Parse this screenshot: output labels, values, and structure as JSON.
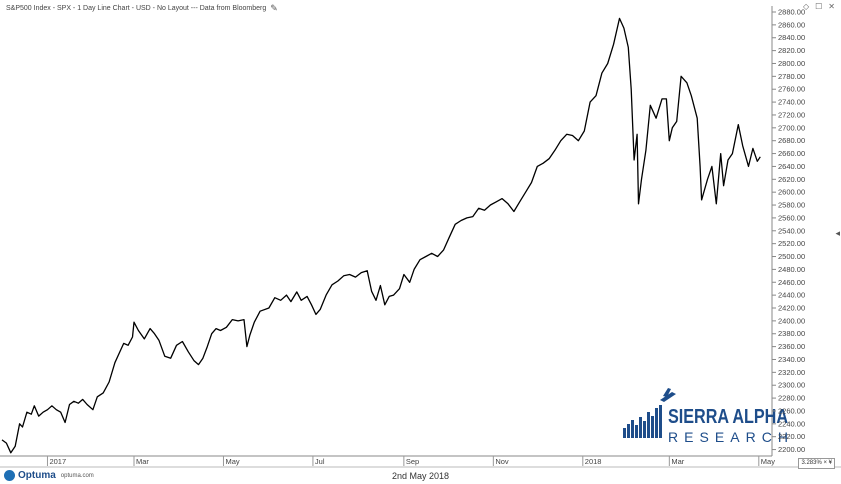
{
  "header": {
    "title": "S&P500 Index - SPX - 1 Day Line Chart - USD - No Layout --- Data from Bloomberg",
    "icon_names": [
      "pencil-icon",
      "diamond-icon",
      "maximize-icon",
      "close-icon",
      "collapse-arrow-icon"
    ]
  },
  "logo": {
    "name_line": "SIERRA ALPHA",
    "sub_line": "RESEARCH",
    "color": "#1e4d8a"
  },
  "footer": {
    "brand": "Optuma",
    "url": "optuma.com",
    "date": "2nd May 2018",
    "scale": "3.283% × ¥"
  },
  "chart_data": {
    "type": "line",
    "title": "S&P500 Index - SPX - 1 Day Line Chart - USD - No Layout --- Data from Bloomberg",
    "xlabel": "",
    "ylabel": "",
    "line_color": "#000000",
    "ylim": [
      2190,
      2880
    ],
    "xlim": [
      "2016-12-01",
      "2018-05-10"
    ],
    "y_ticks": [
      2200,
      2220,
      2240,
      2260,
      2280,
      2300,
      2320,
      2340,
      2360,
      2380,
      2400,
      2420,
      2440,
      2460,
      2480,
      2500,
      2520,
      2540,
      2560,
      2580,
      2600,
      2620,
      2640,
      2660,
      2680,
      2700,
      2720,
      2740,
      2760,
      2780,
      2800,
      2820,
      2840,
      2860,
      2880
    ],
    "x_ticks": [
      {
        "label": "2017",
        "date": "2017-01-01"
      },
      {
        "label": "Mar",
        "date": "2017-03-01"
      },
      {
        "label": "May",
        "date": "2017-05-01"
      },
      {
        "label": "Jul",
        "date": "2017-07-01"
      },
      {
        "label": "Sep",
        "date": "2017-09-01"
      },
      {
        "label": "Nov",
        "date": "2017-11-01"
      },
      {
        "label": "2018",
        "date": "2018-01-01"
      },
      {
        "label": "Mar",
        "date": "2018-03-01"
      },
      {
        "label": "May",
        "date": "2018-05-01"
      }
    ],
    "grid": false,
    "legend": "none",
    "series": [
      {
        "points": [
          [
            "2016-12-01",
            2215
          ],
          [
            "2016-12-04",
            2210
          ],
          [
            "2016-12-07",
            2195
          ],
          [
            "2016-12-10",
            2205
          ],
          [
            "2016-12-13",
            2240
          ],
          [
            "2016-12-15",
            2235
          ],
          [
            "2016-12-18",
            2258
          ],
          [
            "2016-12-21",
            2255
          ],
          [
            "2016-12-23",
            2268
          ],
          [
            "2016-12-26",
            2252
          ],
          [
            "2016-12-29",
            2258
          ],
          [
            "2017-01-01",
            2262
          ],
          [
            "2017-01-04",
            2268
          ],
          [
            "2017-01-07",
            2262
          ],
          [
            "2017-01-10",
            2258
          ],
          [
            "2017-01-13",
            2242
          ],
          [
            "2017-01-16",
            2270
          ],
          [
            "2017-01-19",
            2275
          ],
          [
            "2017-01-22",
            2272
          ],
          [
            "2017-01-25",
            2278
          ],
          [
            "2017-01-28",
            2270
          ],
          [
            "2017-02-01",
            2262
          ],
          [
            "2017-02-04",
            2282
          ],
          [
            "2017-02-08",
            2288
          ],
          [
            "2017-02-12",
            2305
          ],
          [
            "2017-02-16",
            2335
          ],
          [
            "2017-02-19",
            2350
          ],
          [
            "2017-02-22",
            2365
          ],
          [
            "2017-02-25",
            2362
          ],
          [
            "2017-02-28",
            2375
          ],
          [
            "2017-03-01",
            2398
          ],
          [
            "2017-03-04",
            2385
          ],
          [
            "2017-03-08",
            2372
          ],
          [
            "2017-03-12",
            2388
          ],
          [
            "2017-03-15",
            2380
          ],
          [
            "2017-03-18",
            2370
          ],
          [
            "2017-03-22",
            2345
          ],
          [
            "2017-03-26",
            2342
          ],
          [
            "2017-03-30",
            2362
          ],
          [
            "2017-04-03",
            2368
          ],
          [
            "2017-04-07",
            2352
          ],
          [
            "2017-04-11",
            2338
          ],
          [
            "2017-04-14",
            2332
          ],
          [
            "2017-04-17",
            2342
          ],
          [
            "2017-04-20",
            2360
          ],
          [
            "2017-04-23",
            2380
          ],
          [
            "2017-04-26",
            2388
          ],
          [
            "2017-04-29",
            2385
          ],
          [
            "2017-05-03",
            2390
          ],
          [
            "2017-05-07",
            2402
          ],
          [
            "2017-05-11",
            2400
          ],
          [
            "2017-05-15",
            2402
          ],
          [
            "2017-05-17",
            2360
          ],
          [
            "2017-05-19",
            2378
          ],
          [
            "2017-05-22",
            2398
          ],
          [
            "2017-05-26",
            2415
          ],
          [
            "2017-06-01",
            2420
          ],
          [
            "2017-06-05",
            2436
          ],
          [
            "2017-06-09",
            2432
          ],
          [
            "2017-06-13",
            2440
          ],
          [
            "2017-06-16",
            2430
          ],
          [
            "2017-06-20",
            2445
          ],
          [
            "2017-06-23",
            2432
          ],
          [
            "2017-06-27",
            2438
          ],
          [
            "2017-06-30",
            2425
          ],
          [
            "2017-07-03",
            2410
          ],
          [
            "2017-07-06",
            2418
          ],
          [
            "2017-07-10",
            2440
          ],
          [
            "2017-07-14",
            2456
          ],
          [
            "2017-07-18",
            2462
          ],
          [
            "2017-07-22",
            2470
          ],
          [
            "2017-07-26",
            2472
          ],
          [
            "2017-07-30",
            2468
          ],
          [
            "2017-08-03",
            2475
          ],
          [
            "2017-08-07",
            2478
          ],
          [
            "2017-08-10",
            2446
          ],
          [
            "2017-08-13",
            2432
          ],
          [
            "2017-08-16",
            2455
          ],
          [
            "2017-08-19",
            2425
          ],
          [
            "2017-08-22",
            2438
          ],
          [
            "2017-08-25",
            2440
          ],
          [
            "2017-08-29",
            2450
          ],
          [
            "2017-09-01",
            2472
          ],
          [
            "2017-09-05",
            2460
          ],
          [
            "2017-09-08",
            2480
          ],
          [
            "2017-09-12",
            2495
          ],
          [
            "2017-09-16",
            2500
          ],
          [
            "2017-09-20",
            2505
          ],
          [
            "2017-09-24",
            2500
          ],
          [
            "2017-09-28",
            2510
          ],
          [
            "2017-10-02",
            2530
          ],
          [
            "2017-10-06",
            2550
          ],
          [
            "2017-10-10",
            2556
          ],
          [
            "2017-10-14",
            2560
          ],
          [
            "2017-10-18",
            2562
          ],
          [
            "2017-10-22",
            2575
          ],
          [
            "2017-10-26",
            2572
          ],
          [
            "2017-10-30",
            2580
          ],
          [
            "2017-11-03",
            2585
          ],
          [
            "2017-11-07",
            2590
          ],
          [
            "2017-11-11",
            2582
          ],
          [
            "2017-11-15",
            2570
          ],
          [
            "2017-11-19",
            2585
          ],
          [
            "2017-11-23",
            2600
          ],
          [
            "2017-11-27",
            2615
          ],
          [
            "2017-12-01",
            2640
          ],
          [
            "2017-12-05",
            2645
          ],
          [
            "2017-12-09",
            2652
          ],
          [
            "2017-12-13",
            2665
          ],
          [
            "2017-12-17",
            2680
          ],
          [
            "2017-12-21",
            2690
          ],
          [
            "2017-12-25",
            2688
          ],
          [
            "2017-12-29",
            2680
          ],
          [
            "2018-01-02",
            2695
          ],
          [
            "2018-01-06",
            2740
          ],
          [
            "2018-01-10",
            2750
          ],
          [
            "2018-01-14",
            2785
          ],
          [
            "2018-01-18",
            2800
          ],
          [
            "2018-01-22",
            2830
          ],
          [
            "2018-01-26",
            2870
          ],
          [
            "2018-01-29",
            2855
          ],
          [
            "2018-02-01",
            2825
          ],
          [
            "2018-02-03",
            2760
          ],
          [
            "2018-02-05",
            2650
          ],
          [
            "2018-02-07",
            2690
          ],
          [
            "2018-02-08",
            2582
          ],
          [
            "2018-02-10",
            2620
          ],
          [
            "2018-02-13",
            2665
          ],
          [
            "2018-02-16",
            2735
          ],
          [
            "2018-02-20",
            2715
          ],
          [
            "2018-02-24",
            2745
          ],
          [
            "2018-02-27",
            2745
          ],
          [
            "2018-03-01",
            2680
          ],
          [
            "2018-03-03",
            2700
          ],
          [
            "2018-03-06",
            2710
          ],
          [
            "2018-03-09",
            2780
          ],
          [
            "2018-03-13",
            2770
          ],
          [
            "2018-03-16",
            2750
          ],
          [
            "2018-03-20",
            2715
          ],
          [
            "2018-03-22",
            2640
          ],
          [
            "2018-03-23",
            2588
          ],
          [
            "2018-03-27",
            2620
          ],
          [
            "2018-03-30",
            2640
          ],
          [
            "2018-04-02",
            2582
          ],
          [
            "2018-04-05",
            2660
          ],
          [
            "2018-04-07",
            2610
          ],
          [
            "2018-04-10",
            2650
          ],
          [
            "2018-04-13",
            2660
          ],
          [
            "2018-04-17",
            2705
          ],
          [
            "2018-04-20",
            2672
          ],
          [
            "2018-04-24",
            2640
          ],
          [
            "2018-04-27",
            2668
          ],
          [
            "2018-04-30",
            2648
          ],
          [
            "2018-05-02",
            2655
          ]
        ]
      }
    ]
  }
}
